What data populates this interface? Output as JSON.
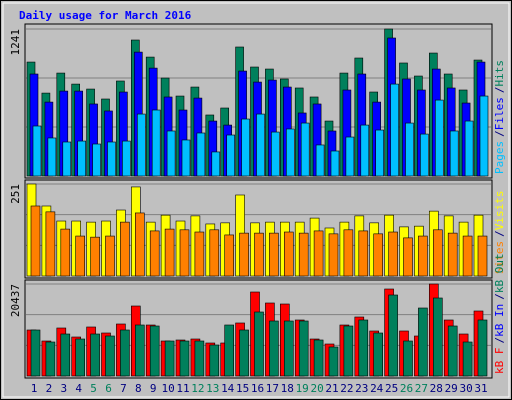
{
  "title": "Daily usage for March 2016",
  "days": {
    "categories": [
      "1",
      "2",
      "3",
      "4",
      "5",
      "6",
      "7",
      "8",
      "9",
      "10",
      "11",
      "12",
      "13",
      "14",
      "15",
      "16",
      "17",
      "18",
      "19",
      "20",
      "21",
      "22",
      "23",
      "24",
      "25",
      "26",
      "27",
      "28",
      "29",
      "30",
      "31"
    ],
    "colors": [
      "#000080",
      "#000080",
      "#000080",
      "#000080",
      "#00805c",
      "#00805c",
      "#000080",
      "#000080",
      "#000080",
      "#000080",
      "#000080",
      "#00805c",
      "#00805c",
      "#000080",
      "#000080",
      "#000080",
      "#000080",
      "#000080",
      "#00805c",
      "#00805c",
      "#000080",
      "#000080",
      "#000080",
      "#000080",
      "#000080",
      "#00805c",
      "#00805c",
      "#000080",
      "#000080",
      "#000080",
      "#000080"
    ]
  },
  "legend_separator": "/",
  "chart_data": [
    {
      "type": "bar",
      "ylim": [
        0,
        1241
      ],
      "yticks": [
        1241
      ],
      "legend_reversed": true,
      "series": [
        {
          "name": "Hits",
          "color": "#00805c",
          "values": [
            962,
            700,
            869,
            776,
            734,
            650,
            802,
            1148,
            1004,
            827,
            675,
            751,
            515,
            574,
            1089,
            920,
            903,
            819,
            743,
            667,
            464,
            869,
            996,
            709,
            1241,
            954,
            844,
            1038,
            861,
            726,
            979
          ]
        },
        {
          "name": "Files",
          "color": "#0000ff",
          "values": [
            861,
            624,
            717,
            717,
            608,
            549,
            709,
            1046,
            911,
            667,
            557,
            658,
            464,
            430,
            886,
            793,
            810,
            751,
            532,
            608,
            380,
            726,
            861,
            624,
            1165,
            819,
            726,
            903,
            743,
            616,
            962
          ]
        },
        {
          "name": "Pages",
          "color": "#00c0ff",
          "values": [
            422,
            321,
            287,
            295,
            270,
            287,
            295,
            523,
            557,
            380,
            304,
            363,
            203,
            346,
            481,
            523,
            371,
            397,
            447,
            262,
            211,
            329,
            430,
            388,
            776,
            447,
            354,
            641,
            380,
            464,
            675
          ]
        }
      ]
    },
    {
      "type": "bar",
      "ylim": [
        0,
        251
      ],
      "yticks": [
        251
      ],
      "legend_reversed": true,
      "series": [
        {
          "name": "Visits",
          "color": "#ffff00",
          "values": [
            251,
            191,
            150,
            150,
            147,
            150,
            180,
            243,
            147,
            166,
            150,
            164,
            142,
            145,
            221,
            145,
            147,
            147,
            147,
            158,
            131,
            147,
            164,
            145,
            166,
            134,
            136,
            177,
            164,
            147,
            166
          ]
        },
        {
          "name": "Sites",
          "color": "#ff8000",
          "values": [
            191,
            175,
            128,
            109,
            106,
            109,
            147,
            172,
            123,
            128,
            126,
            120,
            126,
            112,
            117,
            117,
            117,
            120,
            117,
            123,
            115,
            126,
            123,
            115,
            120,
            104,
            109,
            126,
            117,
            109,
            109
          ]
        }
      ]
    },
    {
      "type": "bar",
      "ylim": [
        0,
        20437
      ],
      "yticks": [
        20437
      ],
      "legend_reversed": false,
      "series": [
        {
          "name": "kB F",
          "color": "#ff0000",
          "values": [
            10219,
            7775,
            10663,
            8664,
            10886,
            9553,
            11552,
            15550,
            11330,
            7775,
            7997,
            8219,
            7330,
            7330,
            11775,
            18660,
            16217,
            15994,
            12441,
            8219,
            7108,
            11330,
            13107,
            9997,
            19326,
            9997,
            8886,
            20437,
            12441,
            9330,
            14440
          ]
        },
        {
          "name": "kB In",
          "color": "#0000ff",
          "values": [
            null,
            null,
            null,
            null,
            null,
            null,
            null,
            null,
            null,
            null,
            null,
            null,
            null,
            null,
            null,
            null,
            null,
            null,
            null,
            null,
            null,
            null,
            null,
            null,
            null,
            null,
            null,
            null,
            null,
            null,
            null
          ]
        },
        {
          "name": "kB Out",
          "color": "#00805c",
          "values": [
            10219,
            7553,
            9330,
            8219,
            9330,
            8886,
            10219,
            11330,
            11108,
            7775,
            7775,
            7775,
            6886,
            11330,
            10219,
            14218,
            12219,
            12219,
            12219,
            7997,
            6442,
            11108,
            12441,
            9553,
            17993,
            7775,
            15106,
            17327,
            11108,
            7553,
            12441
          ]
        }
      ]
    }
  ]
}
